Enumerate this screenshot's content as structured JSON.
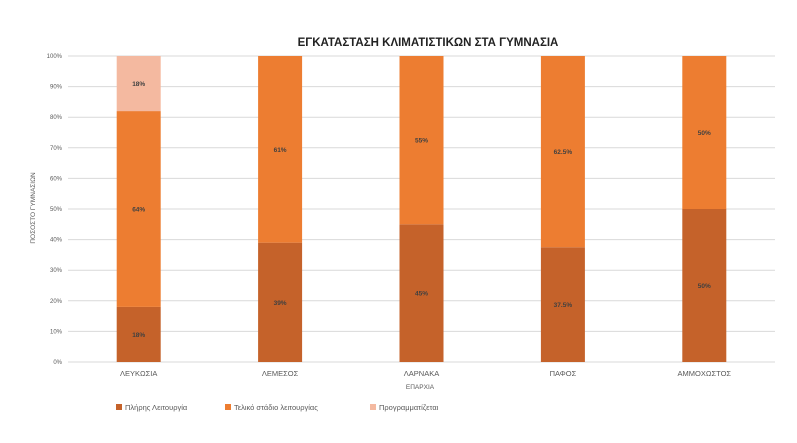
{
  "chart_data": {
    "type": "bar",
    "stacked": true,
    "title": "ΕΓΚΑΤΑΣΤΑΣΗ ΚΛΙΜΑΤΙΣΤΙΚΩΝ ΣΤΑ ΓΥΜΝΑΣΙΑ",
    "xlabel": "ΕΠΑΡΧΙΑ",
    "ylabel": "ΠΟΣΟΣΤΟ ΓΥΜΝΑΣΙΩΝ",
    "ylim": [
      0,
      100
    ],
    "yticks": [
      "0%",
      "10%",
      "20%",
      "30%",
      "40%",
      "50%",
      "60%",
      "70%",
      "80%",
      "90%",
      "100%"
    ],
    "grid": true,
    "legend_position": "bottom-left",
    "categories": [
      "ΛΕΥΚΩΣΙΑ",
      "ΛΕΜΕΣΟΣ",
      "ΛΑΡΝΑΚΑ",
      "ΠΑΦΟΣ",
      "ΑΜΜΟΧΩΣΤΟΣ"
    ],
    "series": [
      {
        "name": "Πλήρης Λειτουργία",
        "color": "#c5622a",
        "values": [
          18,
          39,
          45,
          37.5,
          50
        ],
        "labels": [
          "18%",
          "39%",
          "45%",
          "37.5%",
          "50%"
        ]
      },
      {
        "name": "Τελικό στάδιο λειτουργίας",
        "color": "#ed7d31",
        "values": [
          64,
          61,
          55,
          62.5,
          50
        ],
        "labels": [
          "64%",
          "61%",
          "55%",
          "62.5%",
          "50%"
        ]
      },
      {
        "name": "Προγραμματίζεται",
        "color": "#f4b9a0",
        "values": [
          18,
          0,
          0,
          0,
          0
        ],
        "labels": [
          "18%",
          "",
          "",
          "",
          ""
        ]
      }
    ]
  }
}
